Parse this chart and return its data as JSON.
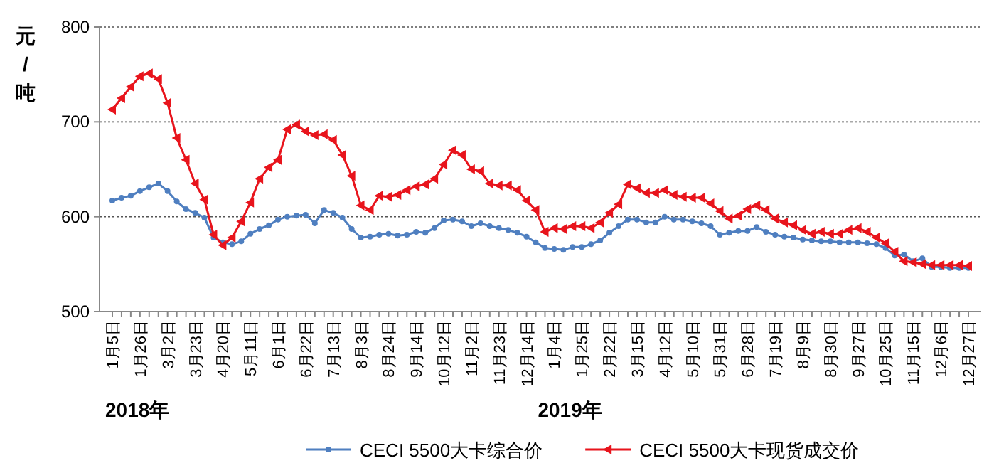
{
  "chart_data": {
    "type": "line",
    "ylabel": "元/吨",
    "categories": [
      "1月5日",
      null,
      null,
      "1月26日",
      null,
      null,
      "3月2日",
      null,
      null,
      "3月23日",
      null,
      null,
      "4月20日",
      null,
      null,
      "5月11日",
      null,
      null,
      "6月1日",
      null,
      null,
      "6月22日",
      null,
      null,
      "7月13日",
      null,
      null,
      "8月3日",
      null,
      null,
      "8月24日",
      null,
      null,
      "9月14日",
      null,
      null,
      "10月12日",
      null,
      null,
      "11月2日",
      null,
      null,
      "11月23日",
      null,
      null,
      "12月14日",
      null,
      null,
      "1月4日",
      null,
      null,
      "1月25日",
      null,
      null,
      "2月22日",
      null,
      null,
      "3月15日",
      null,
      null,
      "4月12日",
      null,
      null,
      "5月10日",
      null,
      null,
      "5月31日",
      null,
      null,
      "6月28日",
      null,
      null,
      "7月19日",
      null,
      null,
      "8月9日",
      null,
      null,
      "8月30日",
      null,
      null,
      "9月27日",
      null,
      null,
      "10月25日",
      null,
      null,
      "11月15日",
      null,
      null,
      "12月6日",
      null,
      null,
      "12月27日"
    ],
    "series": [
      {
        "name": "CECI 5500大卡综合价",
        "color": "#4f7fc0",
        "marker": "circle",
        "values": [
          617,
          620,
          622,
          627,
          631,
          635,
          627,
          616,
          608,
          604,
          599,
          578,
          573,
          571,
          574,
          582,
          587,
          591,
          597,
          600,
          601,
          602,
          593,
          607,
          604,
          599,
          587,
          578,
          579,
          581,
          582,
          580,
          581,
          584,
          583,
          588,
          596,
          597,
          595,
          590,
          593,
          590,
          588,
          586,
          583,
          579,
          573,
          567,
          566,
          565,
          568,
          568,
          571,
          575,
          583,
          590,
          597,
          597,
          594,
          594,
          600,
          597,
          597,
          595,
          593,
          590,
          581,
          583,
          585,
          585,
          589,
          584,
          581,
          579,
          578,
          576,
          575,
          574,
          574,
          573,
          573,
          573,
          572,
          571,
          567,
          559,
          560,
          553,
          556,
          547,
          547,
          546,
          546,
          546
        ]
      },
      {
        "name": "CECI 5500大卡现货成交价",
        "color": "#e8141c",
        "marker": "triangle",
        "values": [
          713,
          725,
          737,
          748,
          751,
          745,
          720,
          683,
          660,
          635,
          618,
          581,
          570,
          578,
          595,
          615,
          640,
          652,
          660,
          692,
          697,
          690,
          686,
          687,
          681,
          665,
          643,
          612,
          607,
          622,
          621,
          623,
          628,
          632,
          634,
          640,
          655,
          670,
          665,
          650,
          648,
          635,
          633,
          633,
          628,
          617,
          607,
          584,
          588,
          587,
          590,
          590,
          588,
          594,
          604,
          613,
          634,
          630,
          625,
          625,
          628,
          623,
          621,
          620,
          620,
          614,
          606,
          598,
          601,
          608,
          612,
          607,
          598,
          594,
          591,
          586,
          582,
          584,
          582,
          582,
          586,
          588,
          584,
          578,
          572,
          563,
          553,
          552,
          550,
          549,
          549,
          549,
          549,
          548
        ]
      }
    ],
    "ylim": [
      500,
      800
    ],
    "yticks": [
      500,
      600,
      700,
      800
    ],
    "grid": "y",
    "legend": "bottom",
    "line_style": "solid",
    "annotations": [
      "2018年",
      "2019年"
    ]
  }
}
